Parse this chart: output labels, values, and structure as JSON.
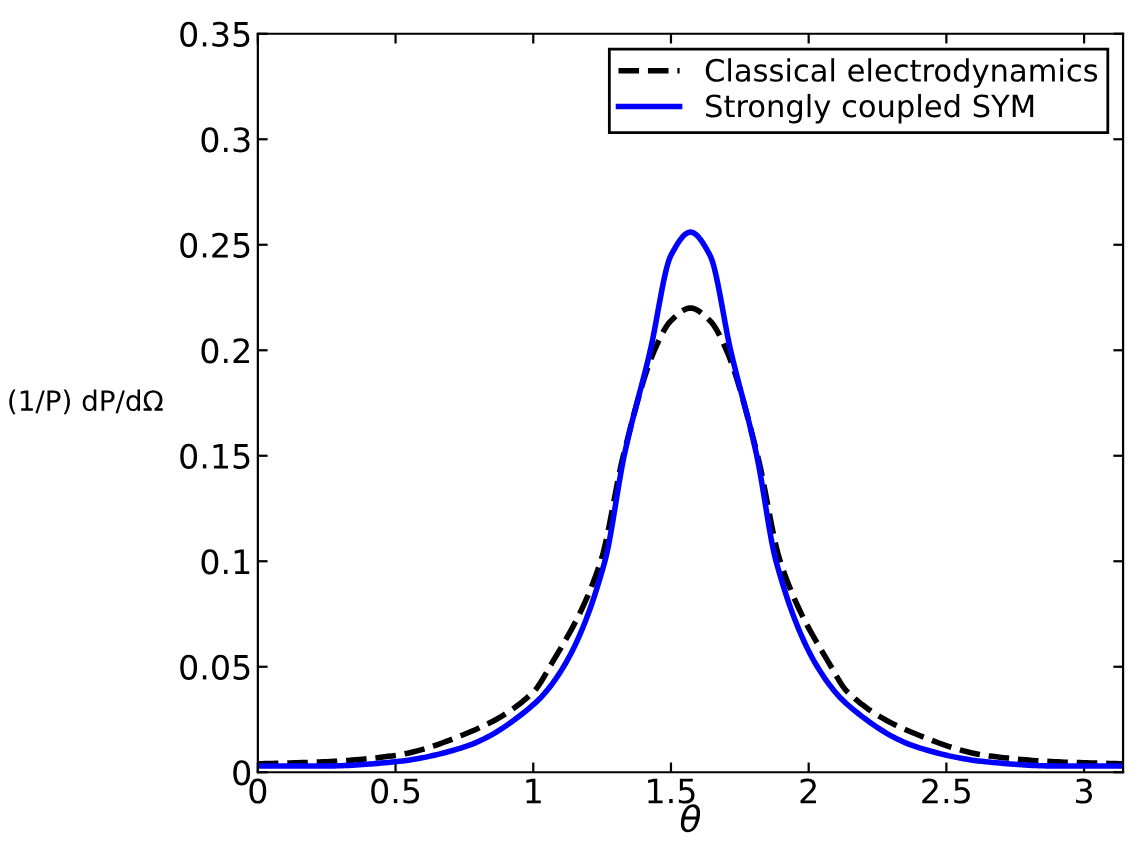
{
  "chart_data": {
    "type": "line",
    "xlabel": "θ",
    "ylabel": "(1/P) dP/dΩ",
    "xlim": [
      0,
      3.1416
    ],
    "ylim": [
      0,
      0.35
    ],
    "xticks": [
      0,
      0.5,
      1,
      1.5,
      2,
      2.5,
      3
    ],
    "yticks": [
      0,
      0.05,
      0.1,
      0.15,
      0.2,
      0.25,
      0.3,
      0.35
    ],
    "grid": false,
    "legend": "top right",
    "marker": "none",
    "series": [
      {
        "name": "Classical electrodynamics",
        "color": "#000000",
        "line_style": "dashed",
        "x": [
          0,
          0.25,
          0.5,
          0.75,
          1.0,
          1.06,
          1.245,
          1.327,
          1.44,
          1.5,
          1.5708,
          1.6416,
          1.7016,
          1.8146,
          1.8966,
          2.0816,
          2.1416,
          2.3916,
          2.6416,
          2.8916,
          3.1416
        ],
        "values": [
          0.004,
          0.005,
          0.008,
          0.018,
          0.038,
          0.05,
          0.1,
          0.15,
          0.2,
          0.214,
          0.22,
          0.214,
          0.2,
          0.15,
          0.1,
          0.05,
          0.038,
          0.018,
          0.008,
          0.005,
          0.004
        ]
      },
      {
        "name": "Strongly coupled SYM",
        "color": "#0000ff",
        "line_style": "solid",
        "x": [
          0,
          0.25,
          0.5,
          0.75,
          1.0,
          1.11,
          1.26,
          1.33,
          1.425,
          1.5,
          1.5708,
          1.6416,
          1.7166,
          1.8116,
          1.8816,
          2.0316,
          2.1416,
          2.3916,
          2.6416,
          2.8916,
          3.1416
        ],
        "values": [
          0.003,
          0.003,
          0.005,
          0.012,
          0.032,
          0.05,
          0.1,
          0.15,
          0.2,
          0.245,
          0.256,
          0.245,
          0.2,
          0.15,
          0.1,
          0.05,
          0.032,
          0.012,
          0.005,
          0.003,
          0.003
        ]
      }
    ]
  }
}
